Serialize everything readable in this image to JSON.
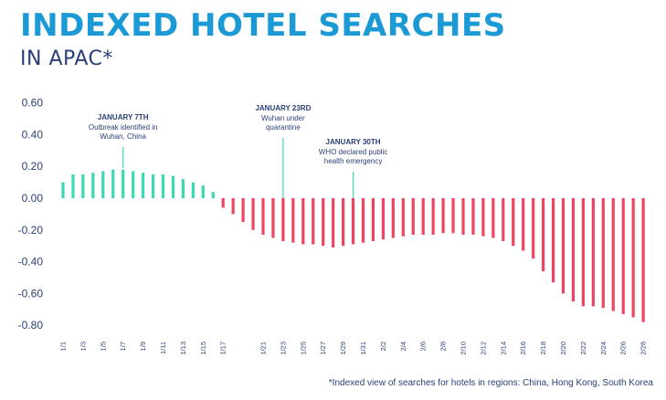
{
  "header": {
    "title": "INDEXED HOTEL SEARCHES",
    "subtitle": "IN APAC*"
  },
  "footnote": "*Indexed view of searches for hotels in regions: China, Hong Kong, South Korea",
  "colors": {
    "title": "#1b9ad6",
    "subtitle": "#2a3f78",
    "positive": "#3dd9b2",
    "negative": "#ee4560",
    "axis_text": "#2a3f78",
    "annotation_title": "#2a3f78",
    "annotation_text": "#2a3f78",
    "annotation_line": "#3dd9b2",
    "footnote": "#2a3f78"
  },
  "chart_data": {
    "type": "bar",
    "title": "INDEXED HOTEL SEARCHES",
    "subtitle": "IN APAC*",
    "xlabel": "",
    "ylabel": "",
    "ylim": [
      -0.8,
      0.6
    ],
    "yticks": [
      0.6,
      0.4,
      0.2,
      0.0,
      -0.2,
      -0.4,
      -0.6,
      -0.8
    ],
    "ytick_labels": [
      "0.60",
      "0.40",
      "0.20",
      "0.00",
      "-0.20",
      "-0.40",
      "-0.60",
      "-0.80"
    ],
    "grid": false,
    "categories": [
      "1/1",
      "1/2",
      "1/3",
      "1/4",
      "1/5",
      "1/6",
      "1/7",
      "1/8",
      "1/9",
      "1/10",
      "1/11",
      "1/12",
      "1/13",
      "1/14",
      "1/15",
      "1/16",
      "1/17",
      "1/18",
      "1/19",
      "1/20",
      "1/21",
      "1/22",
      "1/23",
      "1/24",
      "1/25",
      "1/26",
      "1/27",
      "1/28",
      "1/29",
      "1/30",
      "1/31",
      "2/1",
      "2/2",
      "2/3",
      "2/4",
      "2/5",
      "2/6",
      "2/7",
      "2/8",
      "2/9",
      "2/10",
      "2/11",
      "2/12",
      "2/13",
      "2/14",
      "2/15",
      "2/16",
      "2/17",
      "2/18",
      "2/19",
      "2/20",
      "2/21",
      "2/22",
      "2/23",
      "2/24",
      "2/25",
      "2/26",
      "2/27",
      "2/28"
    ],
    "tick_labels": [
      "1/1",
      "1/3",
      "1/5",
      "1/7",
      "1/9",
      "1/11",
      "1/13",
      "1/15",
      "1/17",
      "1/21",
      "1/23",
      "1/25",
      "1/27",
      "1/29",
      "1/31",
      "2/2",
      "2/4",
      "2/6",
      "2/8",
      "2/10",
      "2/12",
      "2/14",
      "2/16",
      "2/18",
      "2/20",
      "2/22",
      "2/24",
      "2/26",
      "2/28"
    ],
    "tick_indices": [
      0,
      2,
      4,
      6,
      8,
      10,
      12,
      14,
      16,
      20,
      22,
      24,
      26,
      28,
      30,
      32,
      34,
      36,
      38,
      40,
      42,
      44,
      46,
      48,
      50,
      52,
      54,
      56,
      58
    ],
    "values": [
      0.1,
      0.15,
      0.15,
      0.16,
      0.17,
      0.18,
      0.18,
      0.17,
      0.16,
      0.15,
      0.15,
      0.14,
      0.12,
      0.1,
      0.08,
      0.04,
      -0.06,
      -0.1,
      -0.15,
      -0.2,
      -0.23,
      -0.25,
      -0.27,
      -0.28,
      -0.29,
      -0.29,
      -0.3,
      -0.31,
      -0.3,
      -0.29,
      -0.28,
      -0.27,
      -0.26,
      -0.25,
      -0.24,
      -0.23,
      -0.23,
      -0.23,
      -0.22,
      -0.22,
      -0.23,
      -0.23,
      -0.24,
      -0.25,
      -0.27,
      -0.3,
      -0.33,
      -0.38,
      -0.46,
      -0.53,
      -0.6,
      -0.65,
      -0.68,
      -0.68,
      -0.69,
      -0.71,
      -0.73,
      -0.75,
      -0.78
    ],
    "annotations": [
      {
        "index": 6,
        "title": "JANUARY 7TH",
        "lines": [
          "Outbreak identified in",
          "Wuhan, China"
        ]
      },
      {
        "index": 22,
        "title": "JANUARY 23RD",
        "lines": [
          "Wuhan under",
          "quarantine"
        ]
      },
      {
        "index": 29,
        "title": "JANUARY 30TH",
        "lines": [
          "WHO declared public",
          "health emergency"
        ]
      }
    ]
  }
}
